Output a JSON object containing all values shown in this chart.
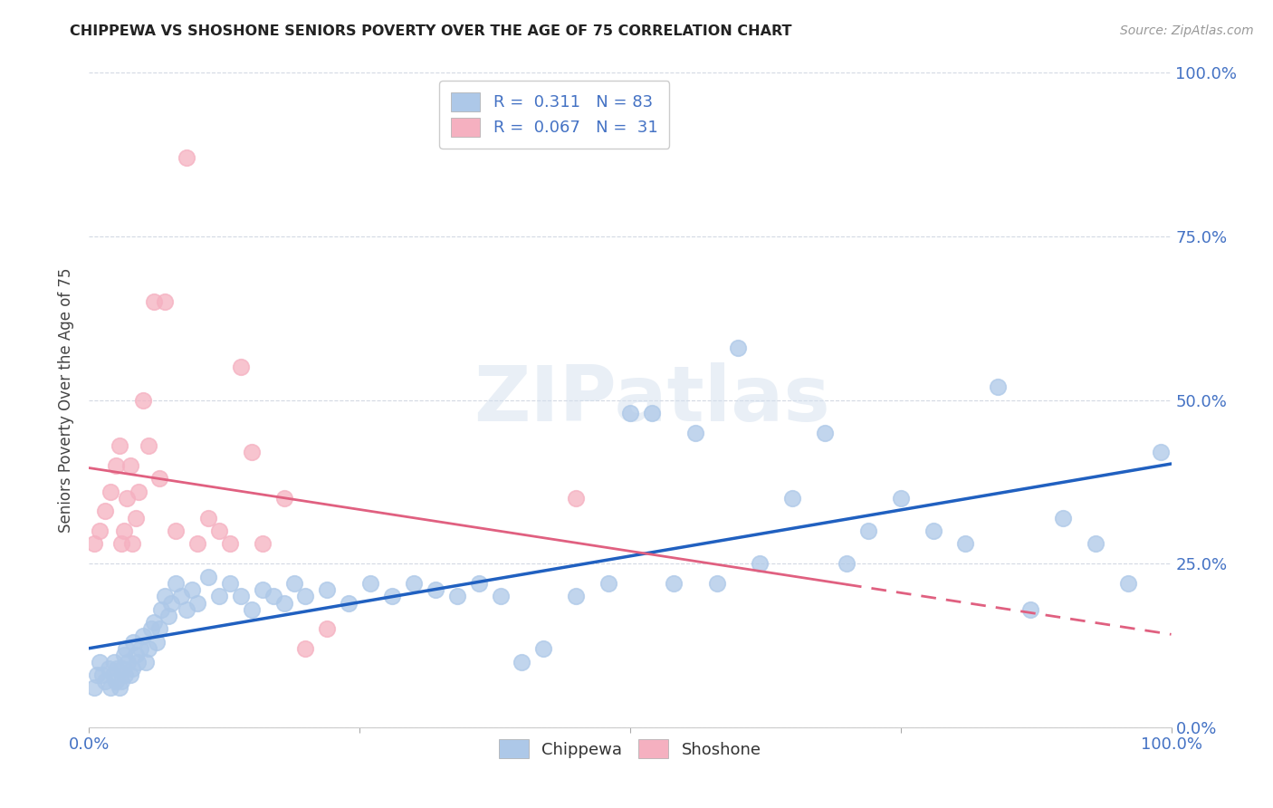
{
  "title": "CHIPPEWA VS SHOSHONE SENIORS POVERTY OVER THE AGE OF 75 CORRELATION CHART",
  "source": "Source: ZipAtlas.com",
  "ylabel": "Seniors Poverty Over the Age of 75",
  "xlim": [
    0,
    1
  ],
  "ylim": [
    0,
    1
  ],
  "chippewa_color": "#adc8e8",
  "chippewa_edge": "#adc8e8",
  "shoshone_color": "#f5b0c0",
  "shoshone_edge": "#f5b0c0",
  "chippewa_line_color": "#2060c0",
  "shoshone_line_color": "#e06080",
  "legend_text_color": "#4472c4",
  "tick_color": "#4472c4",
  "chippewa_R": 0.311,
  "chippewa_N": 83,
  "shoshone_R": 0.067,
  "shoshone_N": 31,
  "watermark": "ZIPatlas",
  "background_color": "#ffffff",
  "chippewa_x": [
    0.005,
    0.007,
    0.01,
    0.012,
    0.015,
    0.018,
    0.02,
    0.022,
    0.023,
    0.025,
    0.026,
    0.028,
    0.03,
    0.031,
    0.032,
    0.033,
    0.034,
    0.036,
    0.038,
    0.04,
    0.041,
    0.043,
    0.045,
    0.047,
    0.05,
    0.052,
    0.055,
    0.057,
    0.06,
    0.062,
    0.065,
    0.067,
    0.07,
    0.073,
    0.076,
    0.08,
    0.085,
    0.09,
    0.095,
    0.1,
    0.11,
    0.12,
    0.13,
    0.14,
    0.15,
    0.16,
    0.17,
    0.18,
    0.19,
    0.2,
    0.22,
    0.24,
    0.26,
    0.28,
    0.3,
    0.32,
    0.34,
    0.36,
    0.38,
    0.4,
    0.42,
    0.45,
    0.48,
    0.5,
    0.52,
    0.54,
    0.56,
    0.58,
    0.6,
    0.62,
    0.65,
    0.68,
    0.7,
    0.72,
    0.75,
    0.78,
    0.81,
    0.84,
    0.87,
    0.9,
    0.93,
    0.96,
    0.99
  ],
  "chippewa_y": [
    0.06,
    0.08,
    0.1,
    0.08,
    0.07,
    0.09,
    0.06,
    0.08,
    0.1,
    0.07,
    0.09,
    0.06,
    0.07,
    0.09,
    0.11,
    0.08,
    0.12,
    0.1,
    0.08,
    0.09,
    0.13,
    0.11,
    0.1,
    0.12,
    0.14,
    0.1,
    0.12,
    0.15,
    0.16,
    0.13,
    0.15,
    0.18,
    0.2,
    0.17,
    0.19,
    0.22,
    0.2,
    0.18,
    0.21,
    0.19,
    0.23,
    0.2,
    0.22,
    0.2,
    0.18,
    0.21,
    0.2,
    0.19,
    0.22,
    0.2,
    0.21,
    0.19,
    0.22,
    0.2,
    0.22,
    0.21,
    0.2,
    0.22,
    0.2,
    0.1,
    0.12,
    0.2,
    0.22,
    0.48,
    0.48,
    0.22,
    0.45,
    0.22,
    0.58,
    0.25,
    0.35,
    0.45,
    0.25,
    0.3,
    0.35,
    0.3,
    0.28,
    0.52,
    0.18,
    0.32,
    0.28,
    0.22,
    0.42
  ],
  "shoshone_x": [
    0.005,
    0.01,
    0.015,
    0.02,
    0.025,
    0.028,
    0.03,
    0.032,
    0.035,
    0.038,
    0.04,
    0.043,
    0.046,
    0.05,
    0.055,
    0.06,
    0.065,
    0.07,
    0.08,
    0.09,
    0.1,
    0.11,
    0.12,
    0.13,
    0.14,
    0.15,
    0.16,
    0.18,
    0.2,
    0.22,
    0.45
  ],
  "shoshone_y": [
    0.28,
    0.3,
    0.33,
    0.36,
    0.4,
    0.43,
    0.28,
    0.3,
    0.35,
    0.4,
    0.28,
    0.32,
    0.36,
    0.5,
    0.43,
    0.65,
    0.38,
    0.65,
    0.3,
    0.87,
    0.28,
    0.32,
    0.3,
    0.28,
    0.55,
    0.42,
    0.28,
    0.35,
    0.12,
    0.15,
    0.35
  ]
}
